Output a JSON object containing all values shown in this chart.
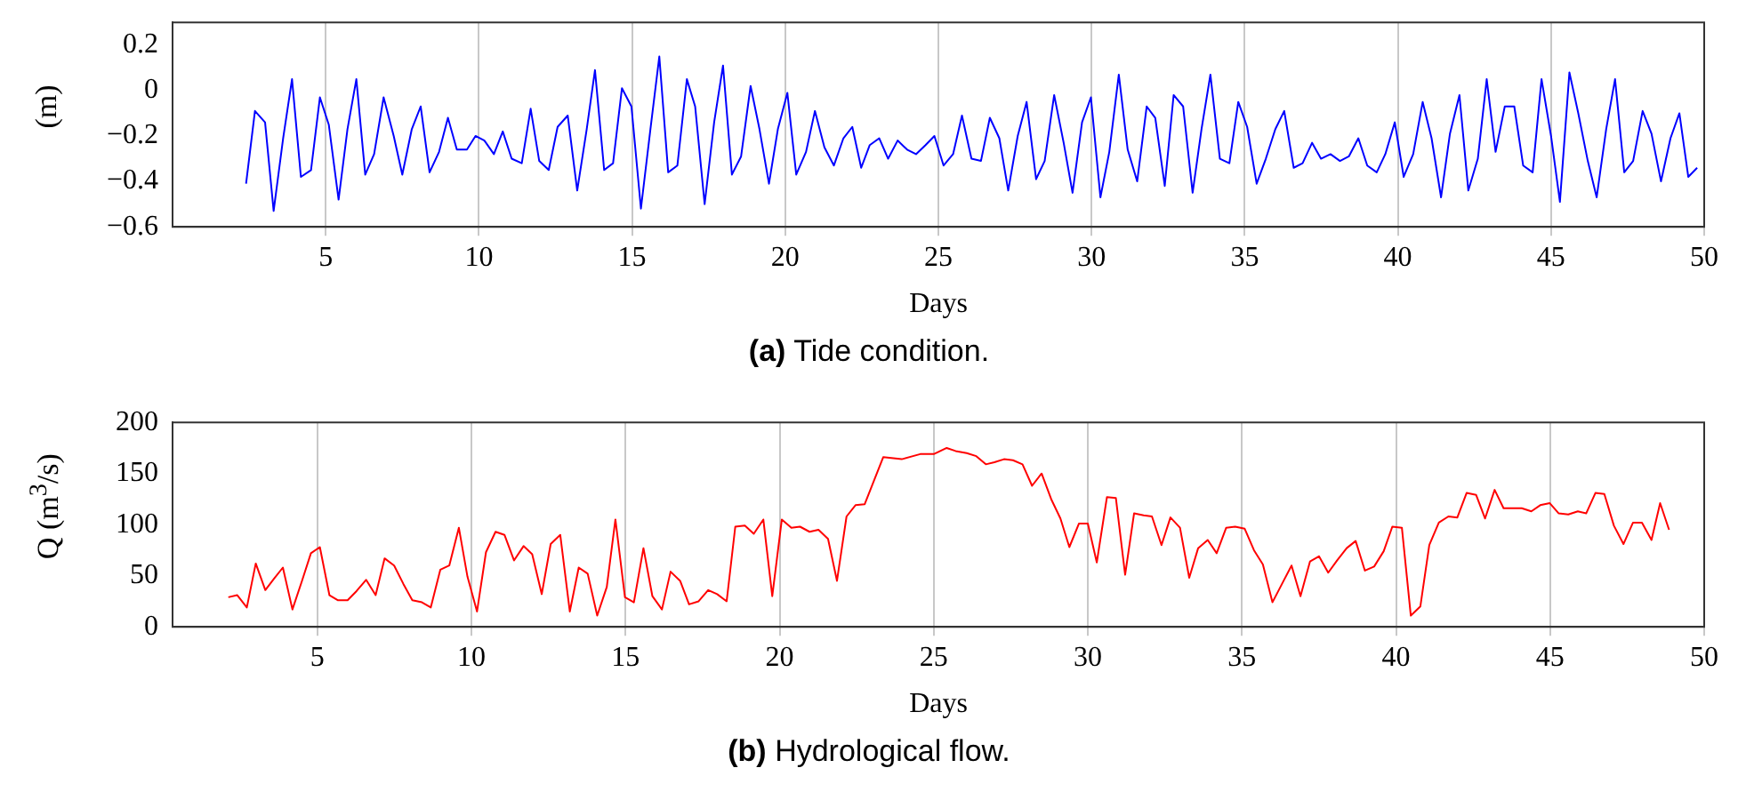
{
  "chart_data": [
    {
      "type": "line",
      "title": "(a) Tide condition.",
      "xlabel": "Days",
      "ylabel": "(m)",
      "xlim": [
        0,
        50
      ],
      "ylim": [
        -0.6,
        0.3
      ],
      "xticks": [
        5,
        10,
        15,
        20,
        25,
        30,
        35,
        40,
        45,
        50
      ],
      "yticks": [
        -0.6,
        -0.4,
        -0.2,
        0,
        0.2
      ],
      "grid": "x",
      "legend": false,
      "marker": "none",
      "line_style": "solid",
      "series": [
        {
          "color": "#0000ff",
          "x": [
            2.4,
            2.69,
            3.02,
            3.3,
            3.61,
            3.9,
            4.19,
            4.52,
            4.81,
            5.1,
            5.42,
            5.71,
            6.0,
            6.29,
            6.58,
            6.89,
            7.22,
            7.5,
            7.81,
            8.1,
            8.39,
            8.7,
            8.99,
            9.28,
            9.61,
            9.89,
            10.18,
            10.49,
            10.78,
            11.07,
            11.4,
            11.69,
            11.97,
            12.28,
            12.57,
            12.9,
            13.21,
            13.52,
            13.79,
            14.09,
            14.38,
            14.67,
            14.98,
            15.29,
            15.6,
            15.89,
            16.18,
            16.48,
            16.79,
            17.06,
            17.37,
            17.68,
            17.97,
            18.26,
            18.56,
            18.87,
            19.16,
            19.47,
            19.76,
            20.07,
            20.36,
            20.68,
            20.97,
            21.28,
            21.59,
            21.9,
            22.19,
            22.48,
            22.76,
            23.07,
            23.36,
            23.67,
            23.98,
            24.27,
            24.58,
            24.87,
            25.17,
            25.48,
            25.77,
            26.08,
            26.39,
            26.68,
            26.99,
            27.28,
            27.59,
            27.88,
            28.19,
            28.47,
            28.78,
            29.09,
            29.38,
            29.69,
            29.98,
            30.29,
            30.58,
            30.89,
            31.18,
            31.49,
            31.8,
            32.08,
            32.39,
            32.68,
            32.99,
            33.3,
            33.59,
            33.88,
            34.19,
            34.5,
            34.79,
            35.08,
            35.39,
            35.69,
            36.0,
            36.29,
            36.6,
            36.89,
            37.2,
            37.49,
            37.8,
            38.11,
            38.4,
            38.71,
            39.0,
            39.31,
            39.59,
            39.9,
            40.19,
            40.5,
            40.81,
            41.1,
            41.41,
            41.7,
            42.01,
            42.3,
            42.61,
            42.9,
            43.19,
            43.49,
            43.8,
            44.09,
            44.4,
            44.69,
            45.0,
            45.29,
            45.6,
            45.89,
            46.2,
            46.49,
            46.8,
            47.09,
            47.39,
            47.68,
            47.99,
            48.28,
            48.59,
            48.9,
            49.19,
            49.48,
            49.77
          ],
          "values": [
            -0.41,
            -0.09,
            -0.14,
            -0.53,
            -0.21,
            0.05,
            -0.38,
            -0.35,
            -0.03,
            -0.15,
            -0.48,
            -0.17,
            0.05,
            -0.37,
            -0.28,
            -0.03,
            -0.2,
            -0.37,
            -0.17,
            -0.07,
            -0.36,
            -0.27,
            -0.12,
            -0.26,
            -0.26,
            -0.2,
            -0.22,
            -0.28,
            -0.18,
            -0.3,
            -0.32,
            -0.08,
            -0.31,
            -0.35,
            -0.16,
            -0.11,
            -0.44,
            -0.17,
            0.09,
            -0.35,
            -0.32,
            0.01,
            -0.07,
            -0.52,
            -0.17,
            0.15,
            -0.36,
            -0.33,
            0.05,
            -0.07,
            -0.5,
            -0.14,
            0.11,
            -0.37,
            -0.29,
            0.02,
            -0.17,
            -0.41,
            -0.17,
            -0.01,
            -0.37,
            -0.27,
            -0.09,
            -0.25,
            -0.33,
            -0.21,
            -0.16,
            -0.34,
            -0.24,
            -0.21,
            -0.3,
            -0.22,
            -0.26,
            -0.28,
            -0.24,
            -0.2,
            -0.33,
            -0.28,
            -0.11,
            -0.3,
            -0.31,
            -0.12,
            -0.21,
            -0.44,
            -0.2,
            -0.05,
            -0.39,
            -0.31,
            -0.02,
            -0.23,
            -0.45,
            -0.14,
            -0.03,
            -0.47,
            -0.27,
            0.07,
            -0.26,
            -0.4,
            -0.07,
            -0.12,
            -0.42,
            -0.02,
            -0.07,
            -0.45,
            -0.17,
            0.07,
            -0.3,
            -0.32,
            -0.05,
            -0.16,
            -0.41,
            -0.3,
            -0.17,
            -0.09,
            -0.34,
            -0.32,
            -0.23,
            -0.3,
            -0.28,
            -0.31,
            -0.29,
            -0.21,
            -0.33,
            -0.36,
            -0.28,
            -0.14,
            -0.38,
            -0.28,
            -0.05,
            -0.21,
            -0.47,
            -0.19,
            -0.02,
            -0.44,
            -0.3,
            0.05,
            -0.27,
            -0.07,
            -0.07,
            -0.33,
            -0.36,
            0.05,
            -0.2,
            -0.49,
            0.08,
            -0.1,
            -0.31,
            -0.47,
            -0.17,
            0.05,
            -0.36,
            -0.31,
            -0.09,
            -0.19,
            -0.4,
            -0.21,
            -0.1,
            -0.38,
            -0.34
          ]
        }
      ]
    },
    {
      "type": "line",
      "title": "(b) Hydrological flow.",
      "xlabel": "Days",
      "ylabel": "Q (m$^{3}$/s)",
      "xlim": [
        0.3,
        50
      ],
      "ylim": [
        0,
        200
      ],
      "xticks": [
        5,
        10,
        15,
        20,
        25,
        30,
        35,
        40,
        45,
        50
      ],
      "yticks": [
        0,
        50,
        100,
        150,
        200
      ],
      "grid": "x",
      "legend": false,
      "marker": "none",
      "line_style": "solid",
      "series": [
        {
          "color": "#ff0000",
          "x": [
            2.11,
            2.4,
            2.71,
            3.0,
            3.31,
            3.59,
            3.88,
            4.19,
            4.5,
            4.79,
            5.08,
            5.39,
            5.67,
            5.98,
            6.27,
            6.58,
            6.89,
            7.18,
            7.49,
            7.79,
            8.08,
            8.39,
            8.68,
            8.99,
            9.28,
            9.59,
            9.87,
            10.18,
            10.47,
            10.78,
            11.07,
            11.38,
            11.69,
            11.97,
            12.28,
            12.57,
            12.88,
            13.19,
            13.48,
            13.77,
            14.08,
            14.39,
            14.67,
            14.98,
            15.27,
            15.58,
            15.87,
            16.18,
            16.46,
            16.77,
            17.06,
            17.37,
            17.68,
            17.97,
            18.28,
            18.56,
            18.87,
            19.16,
            19.47,
            19.76,
            20.07,
            20.38,
            20.66,
            20.97,
            21.26,
            21.57,
            21.86,
            22.17,
            22.46,
            22.76,
            23.36,
            23.96,
            24.56,
            25.0,
            25.42,
            25.71,
            26.07,
            26.38,
            26.69,
            26.97,
            27.28,
            27.57,
            27.88,
            28.19,
            28.5,
            28.81,
            29.11,
            29.4,
            29.71,
            30.0,
            30.29,
            30.62,
            30.91,
            31.21,
            31.5,
            31.81,
            32.08,
            32.39,
            32.68,
            32.99,
            33.29,
            33.58,
            33.89,
            34.18,
            34.49,
            34.78,
            35.09,
            35.39,
            35.68,
            35.99,
            36.3,
            36.61,
            36.9,
            37.21,
            37.5,
            37.8,
            38.09,
            38.4,
            38.69,
            38.99,
            39.29,
            39.6,
            39.88,
            40.19,
            40.48,
            40.79,
            41.08,
            41.39,
            41.7,
            41.99,
            42.29,
            42.6,
            42.89,
            43.2,
            43.49,
            43.8,
            44.08,
            44.39,
            44.68,
            44.99,
            45.28,
            45.59,
            45.9,
            46.17,
            46.47,
            46.76,
            47.07,
            47.38,
            47.69,
            47.98,
            48.29,
            48.57,
            48.86
          ],
          "values": [
            29,
            31,
            19,
            62,
            36,
            47,
            58,
            17,
            45,
            72,
            78,
            31,
            26,
            26,
            35,
            46,
            31,
            67,
            60,
            42,
            26,
            24,
            19,
            56,
            60,
            97,
            49,
            15,
            73,
            93,
            90,
            65,
            79,
            71,
            32,
            81,
            90,
            15,
            58,
            52,
            11,
            39,
            105,
            29,
            24,
            77,
            30,
            17,
            54,
            45,
            22,
            25,
            36,
            32,
            25,
            98,
            99,
            91,
            105,
            30,
            105,
            97,
            98,
            93,
            95,
            86,
            45,
            108,
            119,
            120,
            166,
            164,
            169,
            169,
            175,
            172,
            170,
            167,
            159,
            161,
            164,
            163,
            159,
            138,
            150,
            125,
            106,
            78,
            101,
            101,
            63,
            127,
            126,
            51,
            111,
            109,
            108,
            80,
            107,
            97,
            48,
            77,
            85,
            72,
            97,
            98,
            96,
            75,
            61,
            24,
            42,
            60,
            30,
            64,
            69,
            53,
            65,
            77,
            84,
            55,
            59,
            74,
            98,
            97,
            11,
            20,
            80,
            102,
            108,
            107,
            131,
            129,
            106,
            134,
            116,
            116,
            116,
            113,
            119,
            121,
            111,
            110,
            113,
            111,
            131,
            130,
            99,
            81,
            102,
            102,
            85,
            121,
            95
          ]
        }
      ]
    }
  ]
}
